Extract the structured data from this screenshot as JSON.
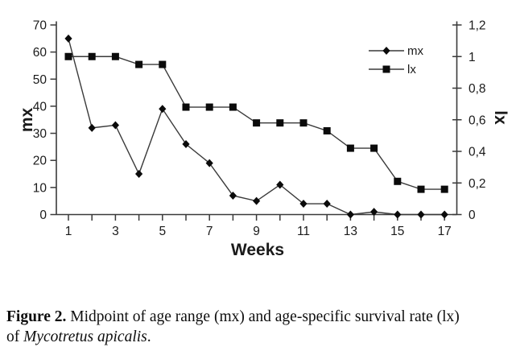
{
  "figure": {
    "caption": {
      "label": "Figure 2.",
      "line1_rest": " Midpoint of age range (mx) and age-specific survival rate (lx)",
      "line2_prefix": "of ",
      "species": "Mycotretus apicalis",
      "suffix": "."
    }
  },
  "chart_data": {
    "type": "line",
    "title": "",
    "xlabel": "Weeks",
    "ylabel_left": "mx",
    "ylabel_right": "lx",
    "x": [
      1,
      2,
      3,
      4,
      5,
      6,
      7,
      8,
      9,
      10,
      11,
      12,
      13,
      14,
      15,
      16,
      17
    ],
    "xticks": [
      {
        "v": 1,
        "label": "1"
      },
      {
        "v": 2,
        "label": ""
      },
      {
        "v": 3,
        "label": "3"
      },
      {
        "v": 4,
        "label": ""
      },
      {
        "v": 5,
        "label": "5"
      },
      {
        "v": 6,
        "label": ""
      },
      {
        "v": 7,
        "label": "7"
      },
      {
        "v": 8,
        "label": ""
      },
      {
        "v": 9,
        "label": "9"
      },
      {
        "v": 10,
        "label": ""
      },
      {
        "v": 11,
        "label": "11"
      },
      {
        "v": 12,
        "label": ""
      },
      {
        "v": 13,
        "label": "13"
      },
      {
        "v": 14,
        "label": ""
      },
      {
        "v": 15,
        "label": "15"
      },
      {
        "v": 16,
        "label": ""
      },
      {
        "v": 17,
        "label": "17"
      }
    ],
    "ylim_left": [
      0,
      70
    ],
    "ylim_right": [
      0,
      1.2
    ],
    "yticks_left": [
      {
        "v": 0,
        "label": "0"
      },
      {
        "v": 10,
        "label": "10"
      },
      {
        "v": 20,
        "label": "20"
      },
      {
        "v": 30,
        "label": "30"
      },
      {
        "v": 40,
        "label": "40"
      },
      {
        "v": 50,
        "label": "50"
      },
      {
        "v": 60,
        "label": "60"
      },
      {
        "v": 70,
        "label": "70"
      }
    ],
    "yticks_right": [
      {
        "v": 0,
        "label": "0"
      },
      {
        "v": 0.2,
        "label": "0,2"
      },
      {
        "v": 0.4,
        "label": "0,4"
      },
      {
        "v": 0.6,
        "label": "0,6"
      },
      {
        "v": 0.8,
        "label": "0,8"
      },
      {
        "v": 1,
        "label": "1"
      },
      {
        "v": 1.2,
        "label": "1,2"
      }
    ],
    "grid": false,
    "legend": {
      "position": "upper-right-inside",
      "entries": [
        {
          "name": "mx",
          "marker": "diamond"
        },
        {
          "name": "lx",
          "marker": "square"
        }
      ]
    },
    "series": [
      {
        "name": "mx",
        "axis": "left",
        "marker": "diamond",
        "values": [
          65,
          32,
          33,
          15,
          39,
          26,
          19,
          7,
          5,
          11,
          4,
          4,
          0,
          1,
          0,
          0,
          0
        ]
      },
      {
        "name": "lx",
        "axis": "right",
        "marker": "square",
        "values": [
          1.0,
          1.0,
          1.0,
          0.95,
          0.95,
          0.68,
          0.68,
          0.68,
          0.58,
          0.58,
          0.58,
          0.53,
          0.42,
          0.42,
          0.21,
          0.16,
          0.16
        ]
      }
    ],
    "colors": {
      "line": "#3a3a3a",
      "marker": "#0b0b0b",
      "axis": "#3a3a3a",
      "text": "#1a1a1a",
      "background": "#ffffff"
    }
  }
}
